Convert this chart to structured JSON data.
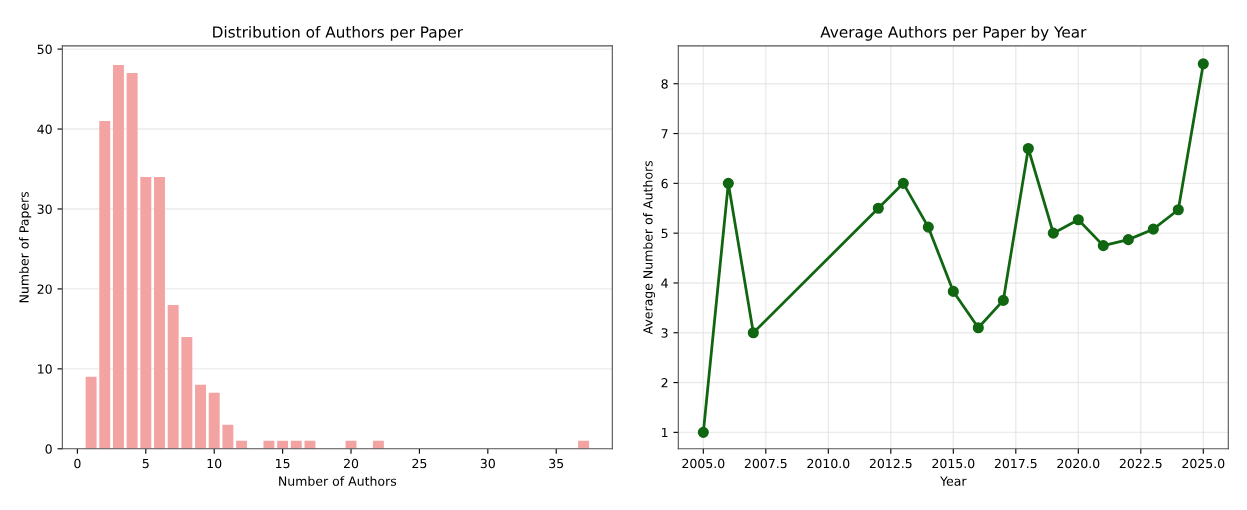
{
  "chart_data": [
    {
      "type": "bar",
      "title": "Distribution of Authors per Paper",
      "xlabel": "Number of Authors",
      "ylabel": "Number of Papers",
      "x": [
        1,
        2,
        3,
        4,
        5,
        6,
        7,
        8,
        9,
        10,
        11,
        12,
        14,
        15,
        16,
        17,
        20,
        22,
        37
      ],
      "values": [
        9,
        41,
        48,
        47,
        34,
        34,
        18,
        14,
        8,
        7,
        3,
        1,
        1,
        1,
        1,
        1,
        1,
        1,
        1
      ],
      "color": "#f4a3a3",
      "xlim": [
        -1.1,
        39.1
      ],
      "xticks": [
        0,
        5,
        10,
        15,
        20,
        25,
        30,
        35
      ],
      "ylim": [
        0,
        50.4
      ],
      "yticks": [
        0,
        10,
        20,
        30,
        40,
        50
      ],
      "grid": "y"
    },
    {
      "type": "line",
      "title": "Average Authors per Paper by Year",
      "xlabel": "Year",
      "ylabel": "Average Number of Authors",
      "x": [
        2005,
        2006,
        2007,
        2012,
        2013,
        2014,
        2015,
        2016,
        2017,
        2018,
        2019,
        2020,
        2021,
        2022,
        2023,
        2024,
        2025
      ],
      "values": [
        1.0,
        6.0,
        3.0,
        5.5,
        6.0,
        5.12,
        3.83,
        3.1,
        3.65,
        6.7,
        5.0,
        5.27,
        4.75,
        4.87,
        5.08,
        5.47,
        8.4
      ],
      "color": "#116611",
      "marker": "circle",
      "line_style": "solid",
      "xlim": [
        2004.0,
        2026.0
      ],
      "xticks": [
        {
          "value": 2005,
          "label": "2005.0"
        },
        {
          "value": 2007.5,
          "label": "2007.5"
        },
        {
          "value": 2010,
          "label": "2010.0"
        },
        {
          "value": 2012.5,
          "label": "2012.5"
        },
        {
          "value": 2015,
          "label": "2015.0"
        },
        {
          "value": 2017.5,
          "label": "2017.5"
        },
        {
          "value": 2020,
          "label": "2020.0"
        },
        {
          "value": 2022.5,
          "label": "2022.5"
        },
        {
          "value": 2025,
          "label": "2025.0"
        }
      ],
      "ylim": [
        0.67,
        8.76
      ],
      "yticks": [
        1,
        2,
        3,
        4,
        5,
        6,
        7,
        8
      ],
      "grid": true
    }
  ]
}
